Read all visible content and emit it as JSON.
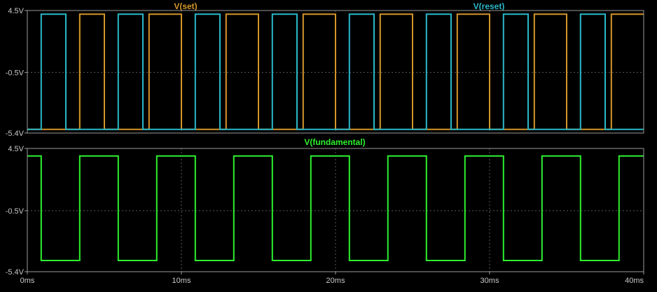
{
  "colors": {
    "background": "#000000",
    "frame": "#9a9a9a",
    "grid": "#5a5a5a",
    "tick_text": "#c8c8c8",
    "set": "#d4962a",
    "reset": "#2ab8c8",
    "fundamental": "#2ef02e"
  },
  "chart_data": [
    {
      "type": "line",
      "title": "",
      "xlabel": "",
      "ylabel": "",
      "xlim": [
        0,
        40
      ],
      "ylim": [
        -5.4,
        4.5
      ],
      "grid": true,
      "x_ticks": [
        "0ms",
        "10ms",
        "20ms",
        "30ms",
        "40ms"
      ],
      "x_tick_values": [
        0,
        10,
        20,
        30,
        40
      ],
      "y_ticks": [
        "4.5V",
        "-0.5V",
        "-5.4V"
      ],
      "y_tick_values": [
        4.5,
        -0.5,
        -5.4
      ],
      "series": [
        {
          "name": "V(set)",
          "color_key": "set",
          "high": 4.2,
          "low": -5.1,
          "high_intervals": [
            [
              3.4,
              5.0
            ],
            [
              7.9,
              10.0
            ],
            [
              12.9,
              15.0
            ],
            [
              17.9,
              20.0
            ],
            [
              22.9,
              25.0
            ],
            [
              27.9,
              30.0
            ],
            [
              32.9,
              35.0
            ],
            [
              37.9,
              40.0
            ]
          ]
        },
        {
          "name": "V(reset)",
          "color_key": "reset",
          "high": 4.2,
          "low": -5.1,
          "high_intervals": [
            [
              0.9,
              2.5
            ],
            [
              5.9,
              7.5
            ],
            [
              10.9,
              12.5
            ],
            [
              15.9,
              17.5
            ],
            [
              20.9,
              22.5
            ],
            [
              25.9,
              27.5
            ],
            [
              30.9,
              32.5
            ],
            [
              35.9,
              37.5
            ]
          ]
        }
      ]
    },
    {
      "type": "line",
      "title": "",
      "xlabel": "",
      "ylabel": "",
      "xlim": [
        0,
        40
      ],
      "ylim": [
        -5.4,
        4.5
      ],
      "grid": true,
      "x_ticks": [
        "0ms",
        "10ms",
        "20ms",
        "30ms",
        "40ms"
      ],
      "x_tick_values": [
        0,
        10,
        20,
        30,
        40
      ],
      "y_ticks": [
        "4.5V",
        "-0.5V",
        "-5.4V"
      ],
      "y_tick_values": [
        4.5,
        -0.5,
        -5.4
      ],
      "series": [
        {
          "name": "V(fundamental)",
          "color_key": "fundamental",
          "high": 3.9,
          "low": -4.5,
          "initial_high_until": 0.9,
          "high_intervals": [
            [
              3.4,
              5.9
            ],
            [
              8.4,
              10.9
            ],
            [
              13.4,
              15.9
            ],
            [
              18.4,
              20.9
            ],
            [
              23.4,
              25.9
            ],
            [
              28.4,
              30.9
            ],
            [
              33.4,
              35.9
            ],
            [
              38.4,
              40.0
            ]
          ]
        }
      ]
    }
  ]
}
